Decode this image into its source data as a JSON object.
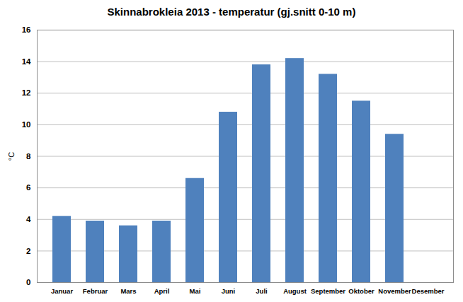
{
  "chart_data": {
    "type": "bar",
    "title": "Skinnabrokleia 2013 - temperatur (gj.snitt 0-10 m)",
    "y_label": "°C",
    "categories": [
      "Januar",
      "Februar",
      "Mars",
      "April",
      "Mai",
      "Juni",
      "Juli",
      "August",
      "September",
      "Oktober",
      "November",
      "Desember"
    ],
    "values": [
      4.2,
      3.9,
      3.6,
      3.9,
      6.6,
      10.8,
      13.8,
      14.2,
      13.2,
      11.5,
      9.4,
      null
    ],
    "color": "#4f81bd",
    "ylim": [
      0,
      16
    ],
    "yticks": [
      0,
      2,
      4,
      6,
      8,
      10,
      12,
      14,
      16
    ],
    "grid": true
  }
}
